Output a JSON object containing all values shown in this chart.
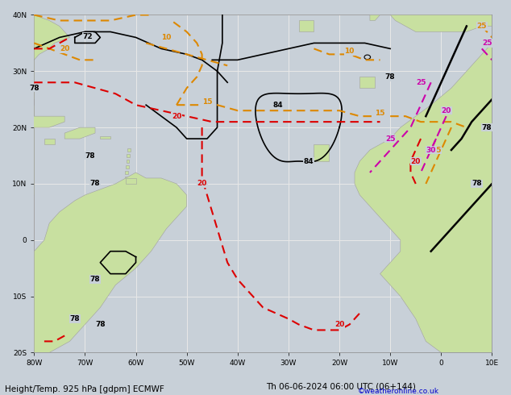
{
  "title_left": "Height/Temp. 925 hPa [gdpm] ECMWF",
  "title_right": "Th 06-06-2024 06:00 UTC (06+144)",
  "copyright": "©weatheronline.co.uk",
  "bg_ocean": "#c8d0d8",
  "bg_land": "#c8e0a0",
  "bg_land_edge": "#a0a0a0",
  "grid_color": "#e8e8e8",
  "fig_bg": "#c8d0d8",
  "xlim": [
    -80,
    10
  ],
  "ylim": [
    -20,
    40
  ],
  "xticks": [
    -80,
    -70,
    -60,
    -50,
    -40,
    -30,
    -20,
    -10,
    0,
    10
  ],
  "yticks": [
    -20,
    -10,
    0,
    10,
    20,
    30,
    40
  ],
  "xlabel_labels": [
    "80W",
    "70W",
    "60W",
    "50W",
    "40W",
    "30W",
    "20W",
    "10W",
    "0",
    "10E"
  ],
  "ylabel_labels": [
    "20S",
    "10S",
    "0",
    "10N",
    "20N",
    "30N",
    "40N"
  ],
  "black_line_color": "#000000",
  "orange_color": "#dd8800",
  "red_color": "#dd0000",
  "magenta_color": "#cc00aa"
}
